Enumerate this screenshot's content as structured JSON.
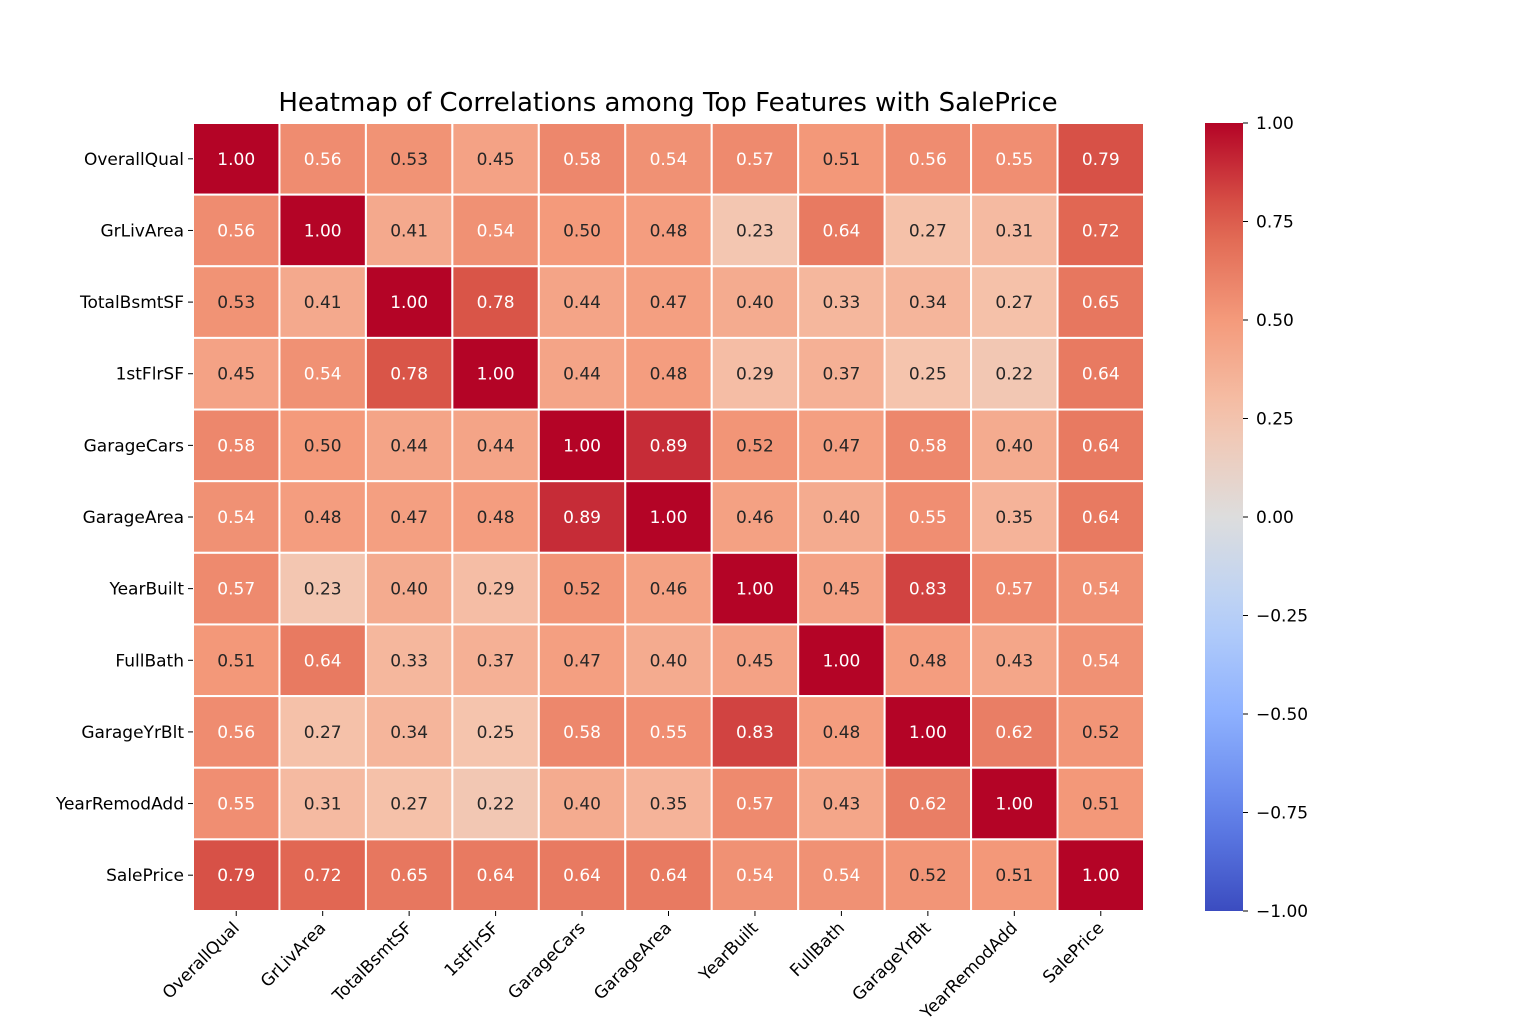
{
  "chart_data": {
    "type": "heatmap",
    "title": "Heatmap of Correlations among Top Features with SalePrice",
    "xlabel": "",
    "ylabel": "",
    "colormap": "coolwarm",
    "vmin": -1.0,
    "vmax": 1.0,
    "annotation_format": "0.00",
    "labels": [
      "OverallQual",
      "GrLivArea",
      "TotalBsmtSF",
      "1stFlrSF",
      "GarageCars",
      "GarageArea",
      "YearBuilt",
      "FullBath",
      "GarageYrBlt",
      "YearRemodAdd",
      "SalePrice"
    ],
    "matrix": [
      [
        1.0,
        0.56,
        0.53,
        0.45,
        0.58,
        0.54,
        0.57,
        0.51,
        0.56,
        0.55,
        0.79
      ],
      [
        0.56,
        1.0,
        0.41,
        0.54,
        0.5,
        0.48,
        0.23,
        0.64,
        0.27,
        0.31,
        0.72
      ],
      [
        0.53,
        0.41,
        1.0,
        0.78,
        0.44,
        0.47,
        0.4,
        0.33,
        0.34,
        0.27,
        0.65
      ],
      [
        0.45,
        0.54,
        0.78,
        1.0,
        0.44,
        0.48,
        0.29,
        0.37,
        0.25,
        0.22,
        0.64
      ],
      [
        0.58,
        0.5,
        0.44,
        0.44,
        1.0,
        0.89,
        0.52,
        0.47,
        0.58,
        0.4,
        0.64
      ],
      [
        0.54,
        0.48,
        0.47,
        0.48,
        0.89,
        1.0,
        0.46,
        0.4,
        0.55,
        0.35,
        0.64
      ],
      [
        0.57,
        0.23,
        0.4,
        0.29,
        0.52,
        0.46,
        1.0,
        0.45,
        0.83,
        0.57,
        0.54
      ],
      [
        0.51,
        0.64,
        0.33,
        0.37,
        0.47,
        0.4,
        0.45,
        1.0,
        0.48,
        0.43,
        0.54
      ],
      [
        0.56,
        0.27,
        0.34,
        0.25,
        0.58,
        0.55,
        0.83,
        0.48,
        1.0,
        0.62,
        0.52
      ],
      [
        0.55,
        0.31,
        0.27,
        0.22,
        0.4,
        0.35,
        0.57,
        0.43,
        0.62,
        1.0,
        0.51
      ],
      [
        0.79,
        0.72,
        0.65,
        0.64,
        0.64,
        0.64,
        0.54,
        0.54,
        0.52,
        0.51,
        1.0
      ]
    ],
    "colorbar": {
      "ticks": [
        1.0,
        0.75,
        0.5,
        0.25,
        0.0,
        -0.25,
        -0.5,
        -0.75,
        -1.0
      ],
      "tick_labels": [
        "1.00",
        "0.75",
        "0.50",
        "0.25",
        "0.00",
        "−0.25",
        "−0.50",
        "−0.75",
        "−1.00"
      ]
    },
    "grid": false,
    "legend": "colorbar-right"
  }
}
